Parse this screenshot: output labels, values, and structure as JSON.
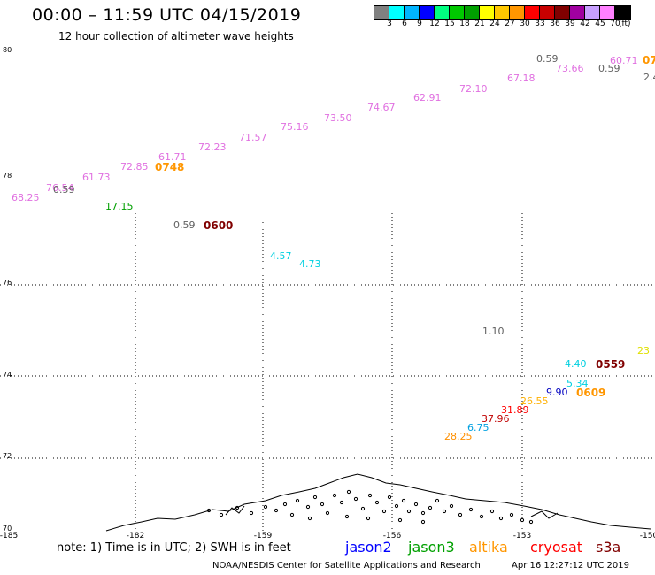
{
  "header": {
    "title": "00:00 – 11:59 UTC 04/15/2019",
    "subtitle": "12 hour collection of altimeter wave heights"
  },
  "colorbar": {
    "colors": [
      "#808080",
      "#00ffff",
      "#00b4ff",
      "#0000ff",
      "#00ff80",
      "#00c800",
      "#00a000",
      "#ffff00",
      "#ffc800",
      "#ff9600",
      "#ff0000",
      "#c80000",
      "#800000",
      "#a000a0",
      "#c8a0ff",
      "#ff80ff",
      "#000000"
    ],
    "labels": [
      "3",
      "6",
      "9",
      "12",
      "15",
      "18",
      "21",
      "24",
      "27",
      "30",
      "33",
      "36",
      "39",
      "42",
      "45",
      "70"
    ],
    "unit": "(ft)"
  },
  "axes": {
    "lat_labels": [
      "80",
      "78",
      "76",
      "74",
      "72",
      "70"
    ],
    "lon_labels": [
      "-185",
      "-182",
      "-159",
      "-156",
      "-153",
      "-150"
    ]
  },
  "observations": [
    {
      "text": "68.25",
      "color": "#e070e0"
    },
    {
      "text": "76.54",
      "color": "#e070e0"
    },
    {
      "text": "0.59",
      "color": "#606060"
    },
    {
      "text": "61.73",
      "color": "#e070e0"
    },
    {
      "text": "72.85",
      "color": "#e070e0"
    },
    {
      "text": "61.71",
      "color": "#e070e0"
    },
    {
      "text": "72.23",
      "color": "#e070e0"
    },
    {
      "text": "71.57",
      "color": "#e070e0"
    },
    {
      "text": "75.16",
      "color": "#e070e0"
    },
    {
      "text": "73.50",
      "color": "#e070e0"
    },
    {
      "text": "74.67",
      "color": "#e070e0"
    },
    {
      "text": "62.91",
      "color": "#e070e0"
    },
    {
      "text": "72.10",
      "color": "#e070e0"
    },
    {
      "text": "67.18",
      "color": "#e070e0"
    },
    {
      "text": "73.66",
      "color": "#e070e0"
    },
    {
      "text": "0.59",
      "color": "#606060"
    },
    {
      "text": "0.59",
      "color": "#606060"
    },
    {
      "text": "60.71",
      "color": "#e070e0"
    },
    {
      "text": "2.4",
      "color": "#606060"
    },
    {
      "text": "17.15",
      "color": "#00a000"
    },
    {
      "text": "0.59",
      "color": "#606060"
    },
    {
      "text": "4.57",
      "color": "#00d0e0"
    },
    {
      "text": "4.73",
      "color": "#00d0e0"
    },
    {
      "text": "1.10",
      "color": "#606060"
    },
    {
      "text": "23",
      "color": "#e0e000"
    },
    {
      "text": "4.40",
      "color": "#00d0e0"
    },
    {
      "text": "5.34",
      "color": "#00d0e0"
    },
    {
      "text": "9.90",
      "color": "#0000c0"
    },
    {
      "text": "26.55",
      "color": "#ffb000"
    },
    {
      "text": "31.89",
      "color": "#ff0000"
    },
    {
      "text": "37.96",
      "color": "#c00000"
    },
    {
      "text": "6.75",
      "color": "#00a0e0"
    },
    {
      "text": "28.25",
      "color": "#ff9000"
    }
  ],
  "time_tags": [
    {
      "text": "0748",
      "color": "#ff9600"
    },
    {
      "text": "07",
      "color": "#ff9600"
    },
    {
      "text": "0600",
      "color": "#800000"
    },
    {
      "text": "0559",
      "color": "#800000"
    },
    {
      "text": "0609",
      "color": "#ff9600"
    }
  ],
  "legend": {
    "note": "note: 1) Time is in UTC; 2) SWH is in feet",
    "satellites": [
      {
        "name": "jason2",
        "color": "#0000ff"
      },
      {
        "name": "jason3",
        "color": "#00a000"
      },
      {
        "name": "altika",
        "color": "#ff9600"
      },
      {
        "name": "cryosat",
        "color": "#ff0000"
      },
      {
        "name": "s3a",
        "color": "#800000"
      }
    ]
  },
  "footer": {
    "credit": "NOAA/NESDIS Center for Satellite Applications and Research",
    "timestamp": "Apr 16 12:27:12 UTC 2019"
  }
}
